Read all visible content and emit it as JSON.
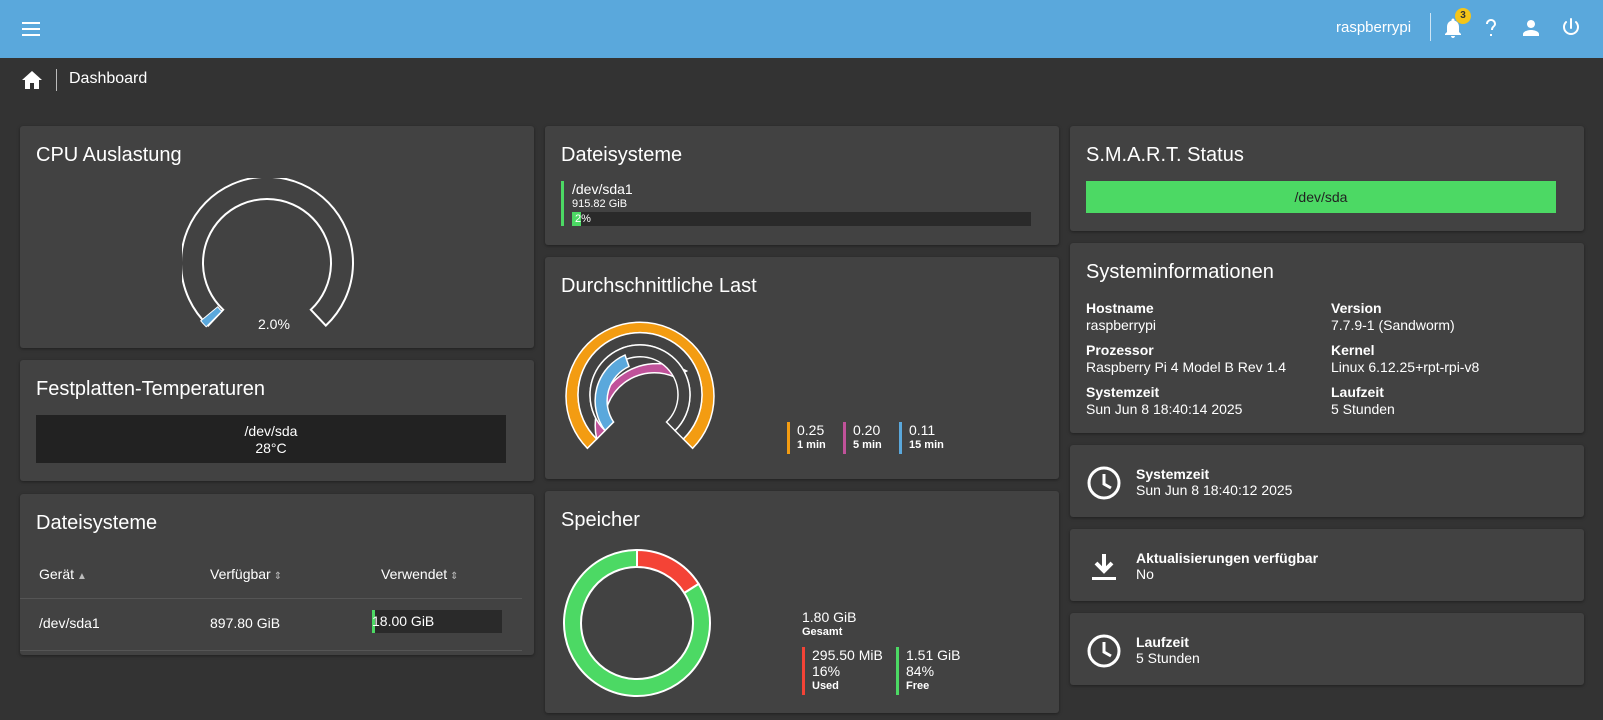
{
  "topbar": {
    "hostname": "raspberrypi",
    "notification_count": "3",
    "color": "#5aa8dc"
  },
  "breadcrumb": {
    "current": "Dashboard"
  },
  "cpu": {
    "title": "CPU Auslastung",
    "value_label": "2.0%",
    "value": 2.0
  },
  "disk_temps": {
    "title": "Festplatten-Temperaturen",
    "device": "/dev/sda",
    "temperature": "28°C"
  },
  "fs_table": {
    "title": "Dateisysteme",
    "headers": {
      "device": "Gerät",
      "available": "Verfügbar",
      "used": "Verwendet"
    },
    "rows": [
      {
        "device": "/dev/sda1",
        "available": "897.80 GiB",
        "used": "18.00 GiB",
        "used_percent": 2
      }
    ]
  },
  "filesystems": {
    "title": "Dateisysteme",
    "items": [
      {
        "device": "/dev/sda1",
        "size": "915.82 GiB",
        "percent_label": "2%",
        "percent": 2
      }
    ]
  },
  "load": {
    "title": "Durchschnittliche Last",
    "items": [
      {
        "value": "0.25",
        "label": "1 min",
        "color": "#f39c12"
      },
      {
        "value": "0.20",
        "label": "5 min",
        "color": "#c0529a"
      },
      {
        "value": "0.11",
        "label": "15 min",
        "color": "#5aa8dc"
      }
    ]
  },
  "memory": {
    "title": "Speicher",
    "total": "1.80 GiB",
    "total_label": "Gesamt",
    "used": {
      "size": "295.50 MiB",
      "percent": "16%",
      "label": "Used",
      "color": "#f44336",
      "fraction": 0.16
    },
    "free": {
      "size": "1.51 GiB",
      "percent": "84%",
      "label": "Free",
      "color": "#4cd964",
      "fraction": 0.84
    }
  },
  "smart": {
    "title": "S.M.A.R.T. Status",
    "device": "/dev/sda",
    "status_color": "#4cd964"
  },
  "sysinfo": {
    "title": "Systeminformationen",
    "hostname_label": "Hostname",
    "hostname": "raspberrypi",
    "version_label": "Version",
    "version": "7.7.9-1 (Sandworm)",
    "processor_label": "Prozessor",
    "processor": "Raspberry Pi 4 Model B Rev 1.4",
    "kernel_label": "Kernel",
    "kernel": "Linux 6.12.25+rpt-rpi-v8",
    "systime_label": "Systemzeit",
    "systime": "Sun Jun 8 18:40:14 2025",
    "uptime_label": "Laufzeit",
    "uptime": "5 Stunden"
  },
  "widgets": {
    "systime": {
      "label": "Systemzeit",
      "value": "Sun Jun 8 18:40:12 2025",
      "icon": "clock-icon"
    },
    "updates": {
      "label": "Aktualisierungen verfügbar",
      "value": "No",
      "icon": "download-icon"
    },
    "uptime": {
      "label": "Laufzeit",
      "value": "5 Stunden",
      "icon": "clock-icon"
    }
  }
}
